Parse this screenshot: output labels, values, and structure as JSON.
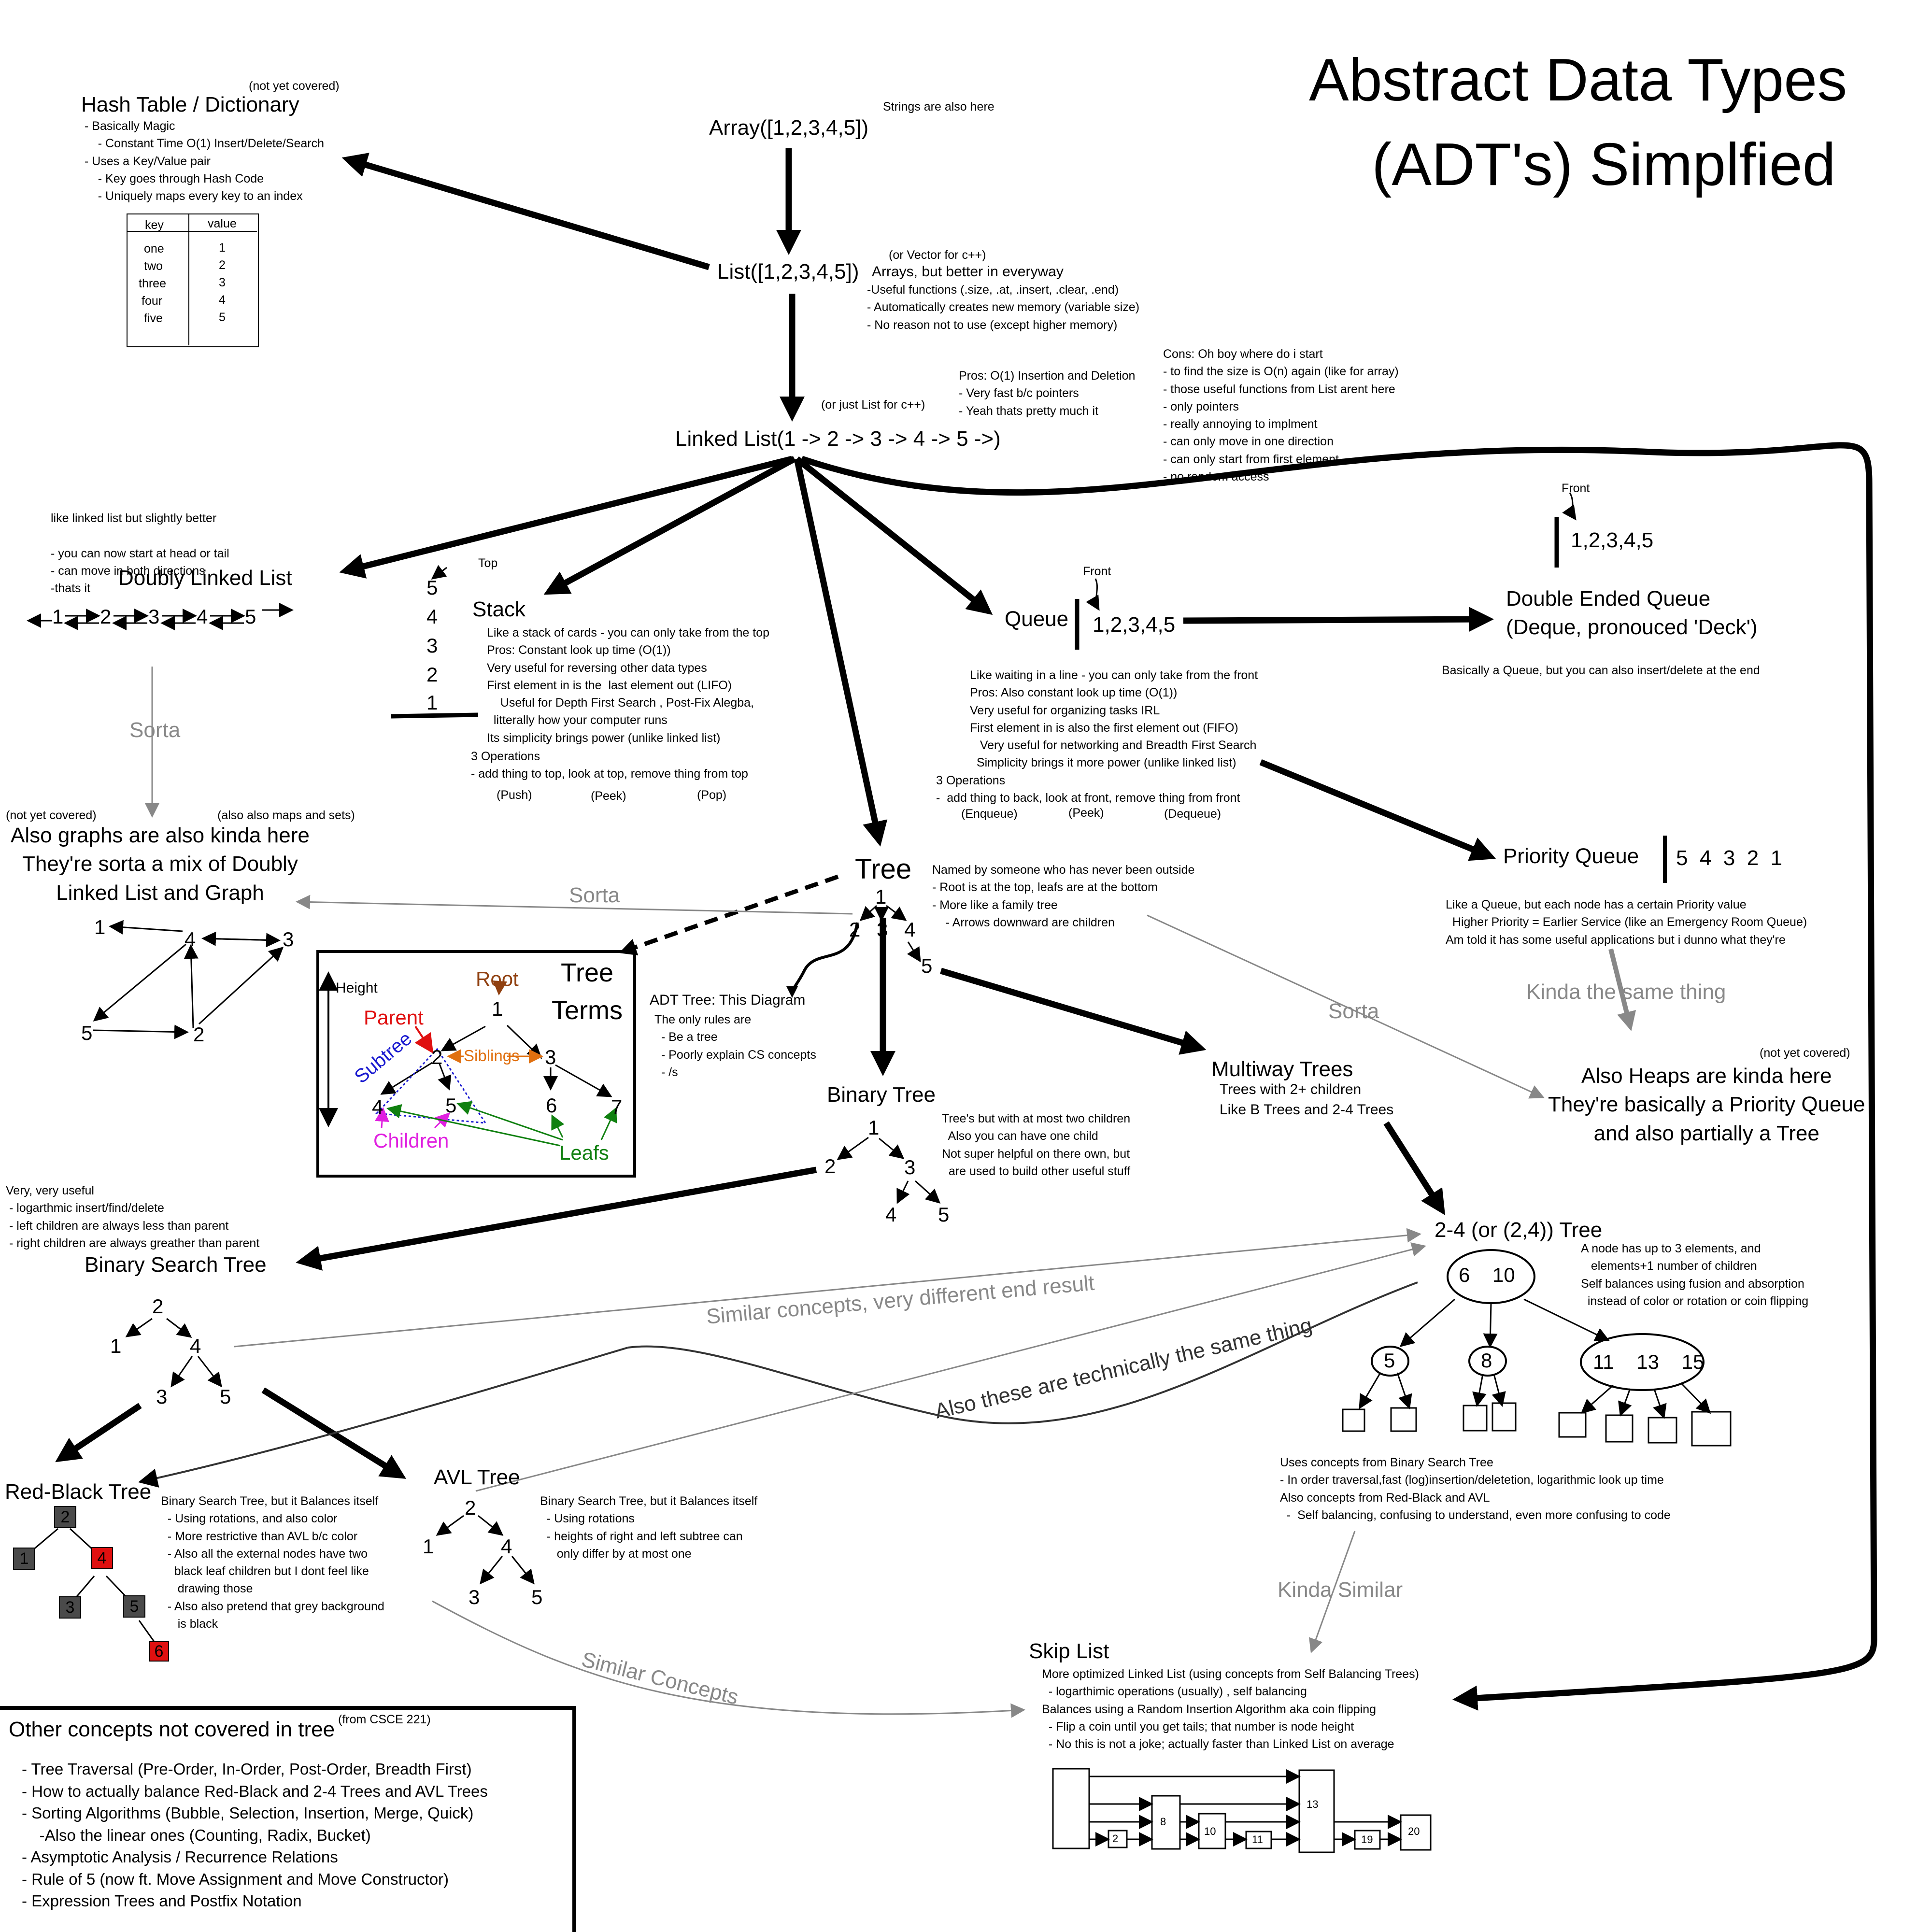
{
  "title": {
    "line1": "Abstract Data Types",
    "line2": "(ADT's) Simplfied"
  },
  "hash": {
    "title": "Hash Table / Dictionary",
    "note": "(not yet covered)",
    "desc": "- Basically Magic\n    - Constant Time O(1) Insert/Delete/Search\n- Uses a Key/Value pair\n    - Key goes through Hash Code\n    - Uniquely maps every key to an index",
    "headers": [
      "key",
      "value"
    ],
    "keys": [
      "one",
      "two",
      "three",
      "four",
      "five"
    ],
    "values": [
      "1",
      "2",
      "3",
      "4",
      "5"
    ]
  },
  "array": {
    "title": "Array([1,2,3,4,5])",
    "note": "Strings are also here"
  },
  "list": {
    "title": "List([1,2,3,4,5])",
    "note": "(or Vector for c++)",
    "desc": "Arrays, but better in everyway",
    "details": "-Useful functions (.size, .at, .insert, .clear, .end)\n- Automatically creates new memory (variable size)\n- No reason not to use (except higher memory)"
  },
  "linked": {
    "title": "Linked List(1 -> 2 -> 3 -> 4 -> 5 ->)",
    "note": "(or just List for c++)",
    "pros": "Pros: O(1) Insertion and Deletion\n- Very fast b/c pointers\n- Yeah thats pretty much it",
    "cons": "Cons: Oh boy where do i start\n- to find the size is O(n) again (like for array)\n- those useful functions from List arent here\n- only pointers\n- really annoying to implment\n- can only move in one direction\n- can only start from first element\n- no random access"
  },
  "dll": {
    "title": "Doubly Linked List",
    "desc": "like linked list but slightly better\n\n- you can now start at head or tail\n- can move in both directions\n-thats it",
    "nodes": [
      "1",
      "2",
      "3",
      "4",
      "5"
    ],
    "sorta": "Sorta"
  },
  "graphs": {
    "text": "Also graphs are also kinda here\nThey're sorta a mix of Doubly\nLinked List and Graph",
    "note_left": "(not yet covered)",
    "note_right": "(also also maps and sets)",
    "nodes": [
      "1",
      "4",
      "3",
      "5",
      "2"
    ]
  },
  "stack": {
    "title": "Stack",
    "top_label": "Top",
    "items": [
      "5",
      "4",
      "3",
      "2",
      "1"
    ],
    "desc": "Like a stack of cards - you can only take from the top\nPros: Constant look up time (O(1))\nVery useful for reversing other data types\nFirst element in is the  last element out (LIFO)\n    Useful for Depth First Search , Post-Fix Alegba,\n  litterally how your computer runs\nIts simplicity brings power (unlike linked list)",
    "ops": "3 Operations\n- add thing to top, look at top, remove thing from top",
    "push": "(Push)",
    "peek": "(Peek)",
    "pop": "(Pop)"
  },
  "queue": {
    "title": "Queue",
    "front": "Front",
    "items": "1,2,3,4,5",
    "desc": "Like waiting in a line - you can only take from the front\nPros: Also constant look up time (O(1))\nVery useful for organizing tasks IRL\nFirst element in is also the first element out (FIFO)\n   Very useful for networking and Breadth First Search\n  Simplicity brings it more power (unlike linked list)",
    "ops": "3 Operations\n-  add thing to back, look at front, remove thing from front",
    "enqueue": "(Enqueue)",
    "peek": "(Peek)",
    "dequeue": "(Dequeue)"
  },
  "deque": {
    "front": "Front",
    "items": "1,2,3,4,5",
    "title": "Double Ended Queue\n(Deque, pronouced 'Deck')",
    "desc": "Basically a Queue, but you can also insert/delete at the end"
  },
  "pq": {
    "title": "Priority Queue",
    "items": "5  4  3  2  1",
    "desc": "Like a Queue, but each node has a certain Priority value\n  Higher Priority = Earlier Service (like an Emergency Room Queue)\nAm told it has some useful applications but i dunno what they're",
    "kinda": "Kinda the same thing"
  },
  "heaps": {
    "text": "Also Heaps are kinda here\nThey're basically a Priority Queue\nand also partially a Tree",
    "note": "(not yet covered)"
  },
  "tree": {
    "title": "Tree",
    "nodes": [
      "1",
      "2",
      "3",
      "4",
      "5"
    ],
    "desc": "Named by someone who has never been outside\n- Root is at the top, leafs are at the bottom\n- More like a family tree\n    - Arrows downward are children",
    "sorta_left": "Sorta",
    "sorta_right": "Sorta"
  },
  "adt_tree": {
    "title": "ADT Tree: This Diagram",
    "desc": "The only rules are\n  - Be a tree\n  - Poorly explain CS concepts\n  - /s"
  },
  "terms": {
    "title": "Tree\nTerms",
    "height": "Height",
    "root": "Root",
    "parent": "Parent",
    "siblings": "Siblings",
    "subtree": "Subtree",
    "children": "Children",
    "leafs": "Leafs",
    "nodes": [
      "1",
      "2",
      "3",
      "4",
      "5",
      "6",
      "7"
    ]
  },
  "binary": {
    "title": "Binary Tree",
    "desc": "Tree's but with at most two children\n  Also you can have one child\nNot super helpful on there own, but\n  are used to build other useful stuff",
    "nodes": [
      "1",
      "2",
      "3",
      "4",
      "5"
    ]
  },
  "multiway": {
    "title": "Multiway Trees",
    "desc": "Trees with 2+ children\nLike B Trees and 2-4 Trees"
  },
  "bst": {
    "title": "Binary Search Tree",
    "desc": "Very, very useful\n - logarthmic insert/find/delete\n - left children are always less than parent\n - right children are always greather than parent",
    "nodes": [
      "2",
      "1",
      "4",
      "3",
      "5"
    ]
  },
  "rbt": {
    "title": "Red-Black Tree",
    "desc": "Binary Search Tree, but it Balances itself\n  - Using rotations, and also color\n  - More restrictive than AVL b/c color\n  - Also all the external nodes have two\n    black leaf children but I dont feel like\n     drawing those\n  - Also also pretend that grey background\n     is black",
    "nodes": [
      "2",
      "1",
      "4",
      "3",
      "5",
      "6"
    ]
  },
  "avl": {
    "title": "AVL Tree",
    "desc": "Binary Search Tree, but it Balances itself\n  - Using rotations\n  - heights of right and left subtree can\n     only differ by at most one",
    "nodes": [
      "2",
      "1",
      "4",
      "3",
      "5"
    ]
  },
  "t24": {
    "title": "2-4 (or (2,4)) Tree",
    "side": "A node has up to 3 elements, and\n   elements+1 number of children\nSelf balances using fusion and absorption\n  instead of color or rotation or coin flipping",
    "root": "6    10",
    "left": "5",
    "mid": "8",
    "right": "11    13    15",
    "desc": "Uses concepts from Binary Search Tree\n- In order traversal,fast (log)insertion/deletetion, logarithmic look up time\nAlso concepts from Red-Black and AVL\n  -  Self balancing, confusing to understand, even more confusing to code"
  },
  "links": {
    "similar_diff": "Similar concepts, very different end result",
    "technically": "Also these are technically the same thing",
    "similar": "Similar Concepts",
    "kinda_similar": "Kinda Similar"
  },
  "skip": {
    "title": "Skip List",
    "desc": "More optimized Linked List (using concepts from Self Balancing Trees)\n  - logarthimic operations (usually) , self balancing\nBalances using a Random Insertion Algorithm aka coin flipping\n  - Flip a coin until you get tails; that number is node height\n  - No this is not a joke; actually faster than Linked List on average",
    "nodes": [
      "2",
      "8",
      "10",
      "11",
      "13",
      "19",
      "20"
    ]
  },
  "other": {
    "title": "Other concepts not covered in tree",
    "note": "(from CSCE 221)",
    "items": "- Tree Traversal (Pre-Order, In-Order, Post-Order, Breadth First)\n- How to actually balance Red-Black and 2-4 Trees and AVL Trees\n- Sorting Algorithms (Bubble, Selection, Insertion, Merge, Quick)\n    -Also the linear ones (Counting, Radix, Bucket)\n- Asymptotic Analysis / Recurrence Relations\n- Rule of 5 (now ft. Move Assignment and Move Constructor)\n- Expression Trees and Postfix Notation"
  },
  "colors": {
    "red": "#e01010",
    "black": "#4a4a4a",
    "gray": "#888888",
    "orange": "#e07010",
    "blue": "#1a1ad0",
    "magenta": "#e020e0",
    "green": "#108010",
    "brown": "#904010"
  }
}
